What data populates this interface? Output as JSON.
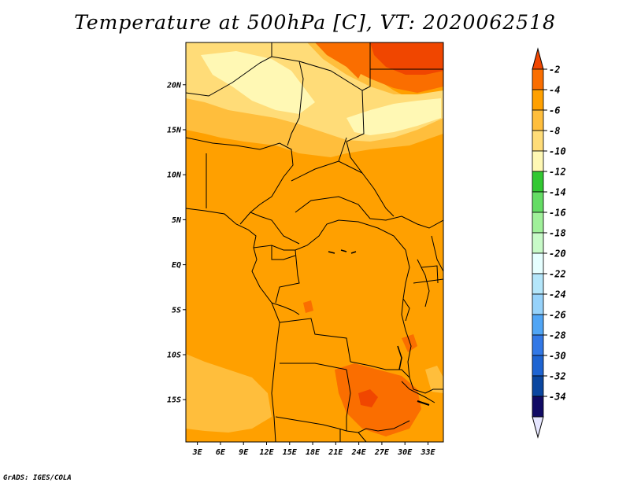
{
  "title": "Temperature at 500hPa [C], VT: 2020062518",
  "credit": "GrADS: IGES/COLA",
  "lat_labels": [
    "20N",
    "15N",
    "10N",
    "5N",
    "EQ",
    "5S",
    "10S",
    "15S"
  ],
  "lat_values": [
    20,
    15,
    10,
    5,
    0,
    -5,
    -10,
    -15
  ],
  "lon_labels": [
    "3E",
    "6E",
    "9E",
    "12E",
    "15E",
    "18E",
    "21E",
    "24E",
    "27E",
    "30E",
    "33E"
  ],
  "lon_values": [
    3,
    6,
    9,
    12,
    15,
    18,
    21,
    24,
    27,
    30,
    33
  ],
  "extent": {
    "lon_min": 1.5,
    "lon_max": 35,
    "lat_min": -19.7,
    "lat_max": 24.7
  },
  "colorbar": {
    "levels": [
      "-2",
      "-4",
      "-6",
      "-8",
      "-10",
      "-12",
      "-14",
      "-16",
      "-18",
      "-20",
      "-22",
      "-24",
      "-26",
      "-28",
      "-30",
      "-32",
      "-34"
    ],
    "colors": [
      "#f04600",
      "#fa6e00",
      "#ffa000",
      "#ffbe3c",
      "#ffdc78",
      "#fff8b4",
      "#32c832",
      "#64dc64",
      "#a0f09a",
      "#c8fac8",
      "#e6ffff",
      "#b4e6fa",
      "#96d2fa",
      "#50a5f5",
      "#3278e6",
      "#1e64d2",
      "#0a46a0",
      "#100a64",
      "#e6e6ff"
    ]
  }
}
